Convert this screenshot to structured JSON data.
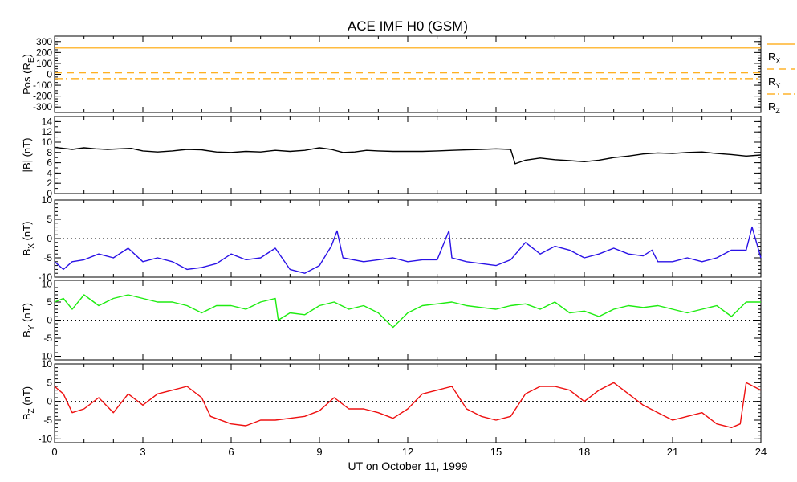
{
  "title": "ACE IMF H0 (GSM)",
  "colors": {
    "frame": "#000000",
    "rx": "#ffa500",
    "bmag": "#000000",
    "bx": "#2a12e6",
    "by": "#1eec10",
    "bz": "#ee1010",
    "zero_line": "#000000"
  },
  "chart_data": [
    {
      "id": "pos",
      "type": "line",
      "ylabel": "Pos (R",
      "ylabel_sub": "E",
      "ylabel_tail": ")",
      "ylim": [
        -350,
        350
      ],
      "yticks": [
        -300,
        -200,
        -100,
        0,
        100,
        200,
        300
      ],
      "zero_line": false,
      "series": [
        {
          "name": "R",
          "sub": "X",
          "style": "solid",
          "values": [
            [
              0,
              241
            ],
            [
              24,
              241
            ]
          ]
        },
        {
          "name": "R",
          "sub": "Y",
          "style": "dashed",
          "values": [
            [
              0,
              13
            ],
            [
              24,
              13
            ]
          ]
        },
        {
          "name": "R",
          "sub": "Z",
          "style": "dashdot",
          "values": [
            [
              0,
              -40
            ],
            [
              24,
              -40
            ]
          ]
        }
      ]
    },
    {
      "id": "bmag",
      "type": "line",
      "ylabel": "|B| (nT)",
      "ylim": [
        0,
        15
      ],
      "yticks": [
        0,
        2,
        4,
        6,
        8,
        10,
        12,
        14
      ],
      "zero_line": false,
      "series": [
        {
          "name": "|B|",
          "values": [
            [
              0,
              9.0
            ],
            [
              0.3,
              8.8
            ],
            [
              0.6,
              8.6
            ],
            [
              1,
              8.9
            ],
            [
              1.4,
              8.7
            ],
            [
              1.8,
              8.6
            ],
            [
              2.2,
              8.7
            ],
            [
              2.6,
              8.8
            ],
            [
              3,
              8.3
            ],
            [
              3.5,
              8.1
            ],
            [
              4,
              8.3
            ],
            [
              4.5,
              8.6
            ],
            [
              5,
              8.5
            ],
            [
              5.5,
              8.1
            ],
            [
              6,
              8.0
            ],
            [
              6.5,
              8.2
            ],
            [
              7,
              8.1
            ],
            [
              7.5,
              8.4
            ],
            [
              8,
              8.2
            ],
            [
              8.5,
              8.4
            ],
            [
              9,
              8.9
            ],
            [
              9.4,
              8.6
            ],
            [
              9.8,
              8.0
            ],
            [
              10.2,
              8.1
            ],
            [
              10.6,
              8.4
            ],
            [
              11,
              8.3
            ],
            [
              11.5,
              8.2
            ],
            [
              12,
              8.2
            ],
            [
              12.5,
              8.2
            ],
            [
              13,
              8.3
            ],
            [
              13.5,
              8.4
            ],
            [
              14,
              8.5
            ],
            [
              14.5,
              8.6
            ],
            [
              15,
              8.7
            ],
            [
              15.5,
              8.6
            ],
            [
              15.65,
              5.8
            ],
            [
              16,
              6.5
            ],
            [
              16.5,
              6.9
            ],
            [
              17,
              6.6
            ],
            [
              17.5,
              6.4
            ],
            [
              18,
              6.2
            ],
            [
              18.5,
              6.5
            ],
            [
              19,
              7.0
            ],
            [
              19.5,
              7.3
            ],
            [
              20,
              7.7
            ],
            [
              20.5,
              7.9
            ],
            [
              21,
              7.8
            ],
            [
              21.5,
              8.0
            ],
            [
              22,
              8.1
            ],
            [
              22.5,
              7.8
            ],
            [
              23,
              7.6
            ],
            [
              23.5,
              7.3
            ],
            [
              24,
              7.5
            ]
          ]
        }
      ]
    },
    {
      "id": "bx",
      "type": "line",
      "ylabel": "B",
      "ylabel_sub": "X",
      "ylabel_tail": " (nT)",
      "ylim": [
        -10,
        10
      ],
      "yticks": [
        -10,
        -5,
        0,
        5,
        10
      ],
      "zero_line": true,
      "series": [
        {
          "name": "Bx",
          "values": [
            [
              0,
              -6
            ],
            [
              0.3,
              -8
            ],
            [
              0.6,
              -6
            ],
            [
              1,
              -5.5
            ],
            [
              1.5,
              -4
            ],
            [
              2,
              -5
            ],
            [
              2.5,
              -2.5
            ],
            [
              3,
              -6
            ],
            [
              3.5,
              -5
            ],
            [
              4,
              -6
            ],
            [
              4.5,
              -8
            ],
            [
              5,
              -7.5
            ],
            [
              5.5,
              -6.5
            ],
            [
              6,
              -4
            ],
            [
              6.5,
              -5.5
            ],
            [
              7,
              -5
            ],
            [
              7.5,
              -2.5
            ],
            [
              8,
              -8
            ],
            [
              8.5,
              -9
            ],
            [
              9,
              -7
            ],
            [
              9.4,
              -2
            ],
            [
              9.6,
              2
            ],
            [
              9.8,
              -5
            ],
            [
              10.5,
              -6
            ],
            [
              11,
              -5.5
            ],
            [
              11.5,
              -5
            ],
            [
              12,
              -6
            ],
            [
              12.5,
              -5.5
            ],
            [
              13,
              -5.5
            ],
            [
              13.4,
              2
            ],
            [
              13.5,
              -5
            ],
            [
              14,
              -6
            ],
            [
              14.5,
              -6.5
            ],
            [
              15,
              -7
            ],
            [
              15.5,
              -5.5
            ],
            [
              16,
              -1
            ],
            [
              16.5,
              -4
            ],
            [
              17,
              -2
            ],
            [
              17.5,
              -3
            ],
            [
              18,
              -5
            ],
            [
              18.5,
              -4
            ],
            [
              19,
              -2.5
            ],
            [
              19.5,
              -4
            ],
            [
              20,
              -4.5
            ],
            [
              20.3,
              -3
            ],
            [
              20.5,
              -6
            ],
            [
              21,
              -6
            ],
            [
              21.5,
              -5
            ],
            [
              22,
              -6
            ],
            [
              22.5,
              -5
            ],
            [
              23,
              -3
            ],
            [
              23.5,
              -3
            ],
            [
              23.7,
              3
            ],
            [
              24,
              -5
            ]
          ]
        }
      ]
    },
    {
      "id": "by",
      "type": "line",
      "ylabel": "B",
      "ylabel_sub": "Y",
      "ylabel_tail": " (nT)",
      "ylim": [
        -11,
        11
      ],
      "yticks": [
        -10,
        -5,
        0,
        5,
        10
      ],
      "zero_line": true,
      "series": [
        {
          "name": "By",
          "values": [
            [
              0,
              5
            ],
            [
              0.3,
              6
            ],
            [
              0.6,
              3
            ],
            [
              1,
              7
            ],
            [
              1.5,
              4
            ],
            [
              2,
              6
            ],
            [
              2.5,
              7
            ],
            [
              3,
              6
            ],
            [
              3.5,
              5
            ],
            [
              4,
              5
            ],
            [
              4.5,
              4
            ],
            [
              5,
              2
            ],
            [
              5.5,
              4
            ],
            [
              6,
              4
            ],
            [
              6.5,
              3
            ],
            [
              7,
              5
            ],
            [
              7.5,
              6
            ],
            [
              7.6,
              0
            ],
            [
              8,
              2
            ],
            [
              8.5,
              1.5
            ],
            [
              9,
              4
            ],
            [
              9.5,
              5
            ],
            [
              10,
              3
            ],
            [
              10.5,
              4
            ],
            [
              11,
              2
            ],
            [
              11.5,
              -2
            ],
            [
              12,
              2
            ],
            [
              12.5,
              4
            ],
            [
              13,
              4.5
            ],
            [
              13.5,
              5
            ],
            [
              14,
              4
            ],
            [
              14.5,
              3.5
            ],
            [
              15,
              3
            ],
            [
              15.5,
              4
            ],
            [
              16,
              4.5
            ],
            [
              16.5,
              3
            ],
            [
              17,
              5
            ],
            [
              17.5,
              2
            ],
            [
              18,
              2.5
            ],
            [
              18.5,
              1
            ],
            [
              19,
              3
            ],
            [
              19.5,
              4
            ],
            [
              20,
              3.5
            ],
            [
              20.5,
              4
            ],
            [
              21,
              3
            ],
            [
              21.5,
              2
            ],
            [
              22,
              3
            ],
            [
              22.5,
              4
            ],
            [
              23,
              1
            ],
            [
              23.5,
              5
            ],
            [
              24,
              5
            ]
          ]
        }
      ]
    },
    {
      "id": "bz",
      "type": "line",
      "ylabel": "B",
      "ylabel_sub": "Z",
      "ylabel_tail": " (nT)",
      "ylim": [
        -11,
        10
      ],
      "yticks": [
        -10,
        -5,
        0,
        5,
        10
      ],
      "zero_line": true,
      "series": [
        {
          "name": "Bz",
          "values": [
            [
              0,
              4
            ],
            [
              0.3,
              2
            ],
            [
              0.6,
              -3
            ],
            [
              1,
              -2
            ],
            [
              1.5,
              1
            ],
            [
              2,
              -3
            ],
            [
              2.5,
              2
            ],
            [
              3,
              -1
            ],
            [
              3.5,
              2
            ],
            [
              4,
              3
            ],
            [
              4.5,
              4
            ],
            [
              5,
              1
            ],
            [
              5.3,
              -4
            ],
            [
              6,
              -6
            ],
            [
              6.5,
              -6.5
            ],
            [
              7,
              -5
            ],
            [
              7.5,
              -5
            ],
            [
              8,
              -4.5
            ],
            [
              8.5,
              -4
            ],
            [
              9,
              -2.5
            ],
            [
              9.5,
              1
            ],
            [
              10,
              -2
            ],
            [
              10.5,
              -2
            ],
            [
              11,
              -3
            ],
            [
              11.5,
              -4.5
            ],
            [
              12,
              -2
            ],
            [
              12.5,
              2
            ],
            [
              13,
              3
            ],
            [
              13.5,
              4
            ],
            [
              14,
              -2
            ],
            [
              14.5,
              -4
            ],
            [
              15,
              -5
            ],
            [
              15.5,
              -4
            ],
            [
              16,
              2
            ],
            [
              16.5,
              4
            ],
            [
              17,
              4
            ],
            [
              17.5,
              3
            ],
            [
              18,
              0
            ],
            [
              18.5,
              3
            ],
            [
              19,
              5
            ],
            [
              19.5,
              2
            ],
            [
              20,
              -1
            ],
            [
              20.5,
              -3
            ],
            [
              21,
              -5
            ],
            [
              21.5,
              -4
            ],
            [
              22,
              -3
            ],
            [
              22.5,
              -6
            ],
            [
              23,
              -7
            ],
            [
              23.3,
              -6
            ],
            [
              23.5,
              5
            ],
            [
              24,
              3
            ]
          ]
        }
      ]
    }
  ],
  "xaxis": {
    "label": "UT on October 11, 1999",
    "range": [
      0,
      24
    ],
    "ticks": [
      0,
      3,
      6,
      9,
      12,
      15,
      18,
      21,
      24
    ]
  }
}
